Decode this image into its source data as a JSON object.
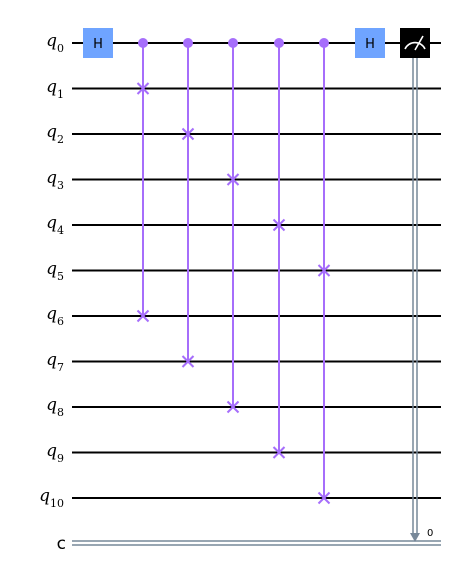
{
  "qubits": [
    {
      "base": "q",
      "index": "0"
    },
    {
      "base": "q",
      "index": "1"
    },
    {
      "base": "q",
      "index": "2"
    },
    {
      "base": "q",
      "index": "3"
    },
    {
      "base": "q",
      "index": "4"
    },
    {
      "base": "q",
      "index": "5"
    },
    {
      "base": "q",
      "index": "6"
    },
    {
      "base": "q",
      "index": "7"
    },
    {
      "base": "q",
      "index": "8"
    },
    {
      "base": "q",
      "index": "9"
    },
    {
      "base": "q",
      "index": "10"
    }
  ],
  "classical": {
    "label": "c",
    "bit_label": "0"
  },
  "gates": [
    {
      "type": "h",
      "qubit": 0,
      "label": "H",
      "column": 0
    },
    {
      "type": "cswap",
      "control": 0,
      "targets": [
        1,
        6
      ],
      "column": 1
    },
    {
      "type": "cswap",
      "control": 0,
      "targets": [
        2,
        7
      ],
      "column": 2
    },
    {
      "type": "cswap",
      "control": 0,
      "targets": [
        3,
        8
      ],
      "column": 3
    },
    {
      "type": "cswap",
      "control": 0,
      "targets": [
        4,
        9
      ],
      "column": 4
    },
    {
      "type": "cswap",
      "control": 0,
      "targets": [
        5,
        10
      ],
      "column": 5
    },
    {
      "type": "h",
      "qubit": 0,
      "label": "H",
      "column": 6
    },
    {
      "type": "measure",
      "qubit": 0,
      "cbit": 0,
      "column": 7
    }
  ],
  "colors": {
    "wire": "#000000",
    "h_gate": "#6fa4ff",
    "cswap": "#a66efb",
    "measure_box": "#000000",
    "measure_icon": "#ffffff",
    "classical_wire": "#778899"
  }
}
